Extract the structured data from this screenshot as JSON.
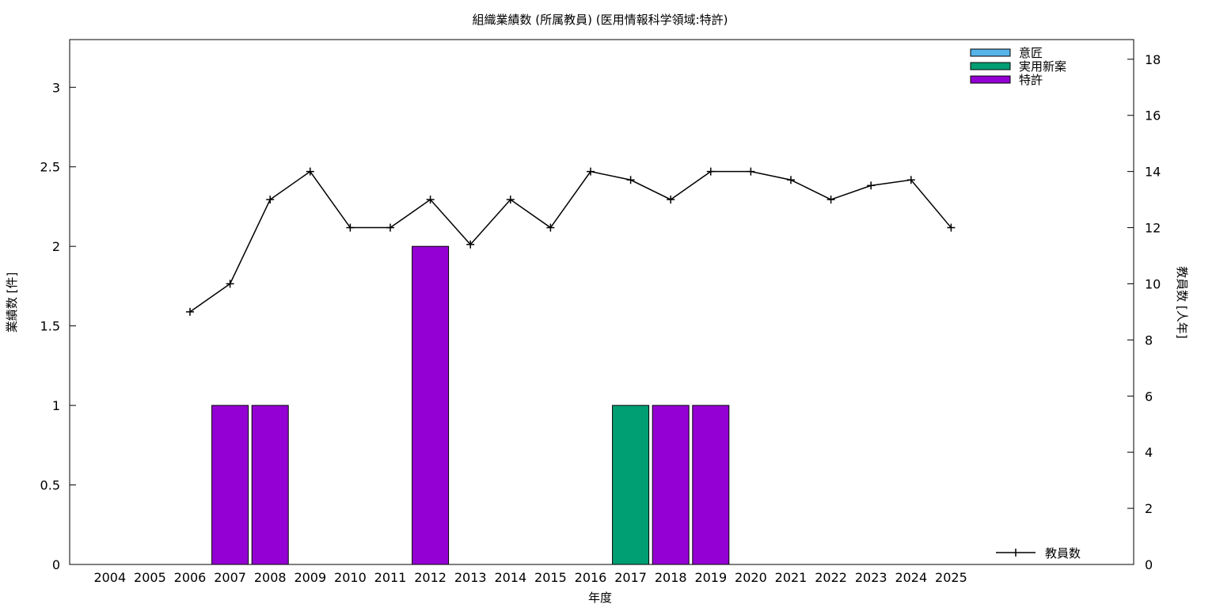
{
  "chart_data": {
    "type": "bar",
    "title": "組織業績数 (所属教員) (医用情報科学領域:特許)",
    "xlabel": "年度",
    "ylabel": "業績数 [件]",
    "y2label": "教員数 [人年]",
    "categories": [
      "2004",
      "2005",
      "2006",
      "2007",
      "2008",
      "2009",
      "2010",
      "2011",
      "2012",
      "2013",
      "2014",
      "2015",
      "2016",
      "2017",
      "2018",
      "2019",
      "2020",
      "2021",
      "2022",
      "2023",
      "2024",
      "2025"
    ],
    "ylim": [
      0,
      3.3
    ],
    "y2lim": [
      0,
      18.7
    ],
    "yticks": [
      0,
      0.5,
      1,
      1.5,
      2,
      2.5,
      3
    ],
    "yticklabels": [
      "0",
      "0.5",
      "1",
      "1.5",
      "2",
      "2.5",
      "3"
    ],
    "y2ticks": [
      0,
      2,
      4,
      6,
      8,
      10,
      12,
      14,
      16,
      18
    ],
    "y2ticklabels": [
      "0",
      "2",
      "4",
      "6",
      "8",
      "10",
      "12",
      "14",
      "16",
      "18"
    ],
    "legend_position": "top-right",
    "series": [
      {
        "name": "意匠",
        "color": "#56b4e9",
        "values": [
          0,
          0,
          0,
          0,
          0,
          0,
          0,
          0,
          0,
          0,
          0,
          0,
          0,
          0,
          0,
          0,
          0,
          0,
          0,
          0,
          0,
          0
        ]
      },
      {
        "name": "実用新案",
        "color": "#009e73",
        "values": [
          0,
          0,
          0,
          0,
          0,
          0,
          0,
          0,
          0,
          0,
          0,
          0,
          0,
          1,
          0,
          0,
          0,
          0,
          0,
          0,
          0,
          0
        ]
      },
      {
        "name": "特許",
        "color": "#9400d3",
        "values": [
          0,
          0,
          0,
          1,
          1,
          0,
          0,
          0,
          2,
          0,
          0,
          0,
          0,
          0,
          1,
          1,
          0,
          0,
          0,
          0,
          0,
          0
        ]
      }
    ],
    "line_series": {
      "name": "教員数",
      "color": "#000000",
      "axis": "y2",
      "x": [
        "2006",
        "2007",
        "2008",
        "2009",
        "2010",
        "2011",
        "2012",
        "2013",
        "2014",
        "2015",
        "2016",
        "2017",
        "2018",
        "2019",
        "2020",
        "2021",
        "2022",
        "2023",
        "2024",
        "2025"
      ],
      "values": [
        9,
        10,
        13,
        14,
        12,
        12,
        13,
        11.4,
        13,
        12,
        14,
        13.7,
        13,
        14,
        14,
        13.7,
        13,
        13.5,
        13.7,
        12
      ]
    }
  }
}
